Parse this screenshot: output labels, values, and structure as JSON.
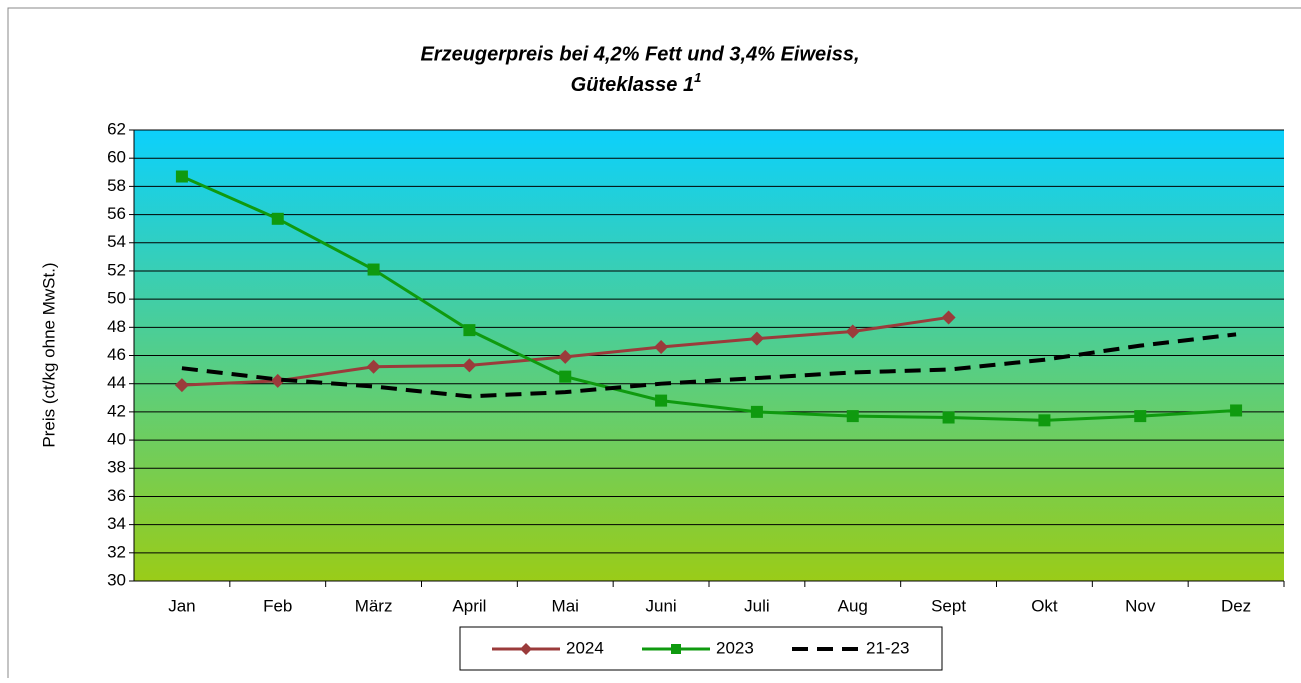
{
  "chart_data": {
    "type": "line",
    "title": "Erzeugerpreis bei 4,2% Fett und 3,4% Eiweiss,",
    "subtitle": "Güteklasse 1",
    "subtitle_superscript": "1",
    "y_label": "Preis (ct/kg ohne MwSt.)",
    "categories": [
      "Jan",
      "Feb",
      "März",
      "April",
      "Mai",
      "Juni",
      "Juli",
      "Aug",
      "Sept",
      "Okt",
      "Nov",
      "Dez"
    ],
    "series": [
      {
        "name": "2024",
        "color": "#9b3b3b",
        "marker": "diamond",
        "dashed": false,
        "values": [
          43.9,
          44.2,
          45.2,
          45.3,
          45.9,
          46.6,
          47.2,
          47.7,
          48.7,
          null,
          null,
          null
        ]
      },
      {
        "name": "2023",
        "color": "#0f9a0f",
        "marker": "square",
        "dashed": false,
        "values": [
          58.7,
          55.7,
          52.1,
          47.8,
          44.5,
          42.8,
          42.0,
          41.7,
          41.6,
          41.4,
          41.7,
          42.1
        ]
      },
      {
        "name": "21-23",
        "color": "#000000",
        "marker": "none",
        "dashed": true,
        "values": [
          45.1,
          44.3,
          43.8,
          43.1,
          43.4,
          44.0,
          44.4,
          44.8,
          45.0,
          45.7,
          46.7,
          47.5
        ]
      }
    ],
    "ylim": [
      30,
      62
    ],
    "yticks": [
      30,
      32,
      34,
      36,
      38,
      40,
      42,
      44,
      46,
      48,
      50,
      52,
      54,
      56,
      58,
      60,
      62
    ],
    "grid": true
  }
}
